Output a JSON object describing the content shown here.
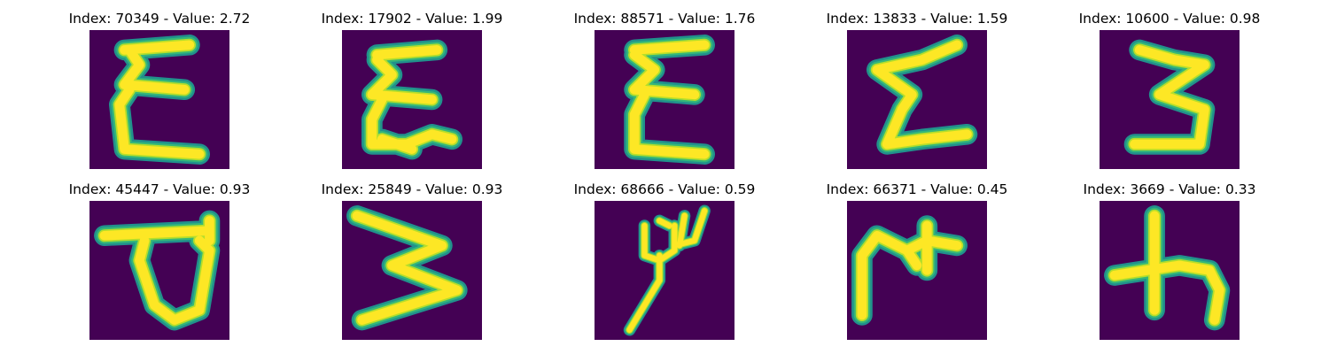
{
  "colors": {
    "background": "#440154",
    "stroke_core": "#fde725",
    "stroke_mid": "#b5de2b",
    "stroke_edge": "#35b779",
    "stroke_outer": "#21918c"
  },
  "panels": [
    {
      "title": "Index: 70349 - Value: 2.72",
      "glyph": "sigma-like-character"
    },
    {
      "title": "Index: 17902 - Value: 1.99",
      "glyph": "sigma-like-character"
    },
    {
      "title": "Index: 88571 - Value: 1.76",
      "glyph": "sigma-like-character"
    },
    {
      "title": "Index: 13833 - Value: 1.59",
      "glyph": "sigma-like-character"
    },
    {
      "title": "Index: 10600 - Value: 0.98",
      "glyph": "three-like-character"
    },
    {
      "title": "Index: 45447 - Value: 0.93",
      "glyph": "loop-character"
    },
    {
      "title": "Index: 25849 - Value: 0.93",
      "glyph": "three-like-character"
    },
    {
      "title": "Index: 68666 - Value: 0.59",
      "glyph": "trident-character"
    },
    {
      "title": "Index: 66371 - Value: 0.45",
      "glyph": "branch-character"
    },
    {
      "title": "Index: 3669 - Value: 0.33",
      "glyph": "cross-character"
    }
  ]
}
